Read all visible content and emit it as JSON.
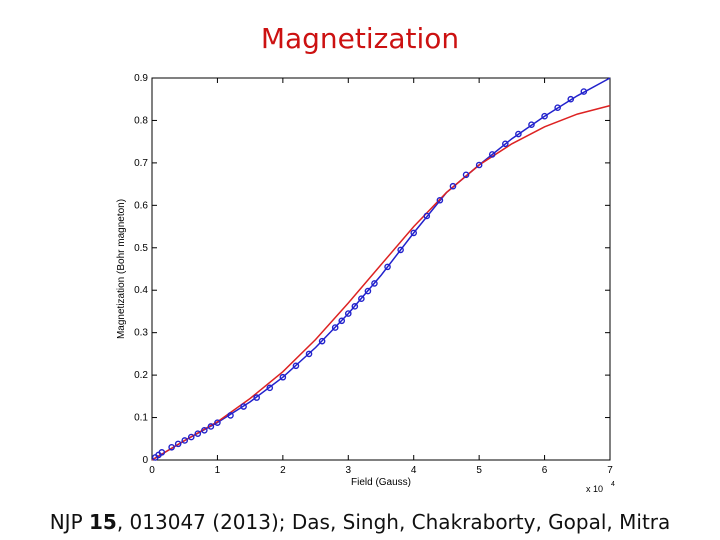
{
  "slide": {
    "title": "Magnetization",
    "caption_prefix": "NJP ",
    "caption_volume": "15",
    "caption_rest": ", 013047 (2013); Das, Singh, Chakraborty, Gopal, Mitra"
  },
  "colors": {
    "title": "#cc1111",
    "data_points": "#2222cc",
    "fit_blue": "#2222cc",
    "fit_red": "#dd2222"
  },
  "chart_data": {
    "type": "scatter",
    "title": "",
    "xlabel": "Field (Gauss)",
    "ylabel": "Magnetization (Bohr magneton)",
    "x_multiplier_label": "x 10",
    "x_multiplier_exponent": "4",
    "xlim": [
      0,
      7
    ],
    "ylim": [
      0,
      0.9
    ],
    "xticks": [
      "0",
      "1",
      "2",
      "3",
      "4",
      "5",
      "6",
      "7"
    ],
    "yticks": [
      "0",
      "0.1",
      "0.2",
      "0.3",
      "0.4",
      "0.5",
      "0.6",
      "0.7",
      "0.8",
      "0.9"
    ],
    "grid": false,
    "series": [
      {
        "kind": "points",
        "color": "#2222cc",
        "x": [
          0.05,
          0.1,
          0.15,
          0.3,
          0.4,
          0.5,
          0.6,
          0.7,
          0.8,
          0.9,
          1.0,
          1.2,
          1.4,
          1.6,
          1.8,
          2.0,
          2.2,
          2.4,
          2.6,
          2.8,
          2.9,
          3.0,
          3.1,
          3.2,
          3.3,
          3.4,
          3.6,
          3.8,
          4.0,
          4.2,
          4.4,
          4.6,
          4.8,
          5.0,
          5.2,
          5.4,
          5.6,
          5.8,
          6.0,
          6.2,
          6.4,
          6.6
        ],
        "y": [
          0.006,
          0.012,
          0.018,
          0.03,
          0.038,
          0.046,
          0.054,
          0.062,
          0.07,
          0.079,
          0.088,
          0.105,
          0.126,
          0.147,
          0.17,
          0.195,
          0.222,
          0.25,
          0.28,
          0.312,
          0.328,
          0.345,
          0.362,
          0.38,
          0.398,
          0.416,
          0.455,
          0.495,
          0.535,
          0.575,
          0.612,
          0.645,
          0.672,
          0.695,
          0.72,
          0.745,
          0.768,
          0.79,
          0.81,
          0.83,
          0.85,
          0.868
        ]
      },
      {
        "kind": "line",
        "color": "#2222cc",
        "x": [
          0,
          0.5,
          1.0,
          1.5,
          2.0,
          2.5,
          3.0,
          3.5,
          4.0,
          4.5,
          5.0,
          5.5,
          6.0,
          6.5,
          7.0
        ],
        "y": [
          0,
          0.046,
          0.088,
          0.137,
          0.195,
          0.265,
          0.345,
          0.435,
          0.535,
          0.63,
          0.695,
          0.757,
          0.81,
          0.858,
          0.9
        ]
      },
      {
        "kind": "line",
        "color": "#dd2222",
        "x": [
          0,
          0.5,
          1.0,
          1.5,
          2.0,
          2.5,
          3.0,
          3.5,
          4.0,
          4.5,
          5.0,
          5.5,
          6.0,
          6.5,
          7.0
        ],
        "y": [
          0,
          0.046,
          0.09,
          0.145,
          0.208,
          0.284,
          0.37,
          0.46,
          0.55,
          0.63,
          0.695,
          0.745,
          0.785,
          0.815,
          0.835
        ]
      }
    ]
  }
}
